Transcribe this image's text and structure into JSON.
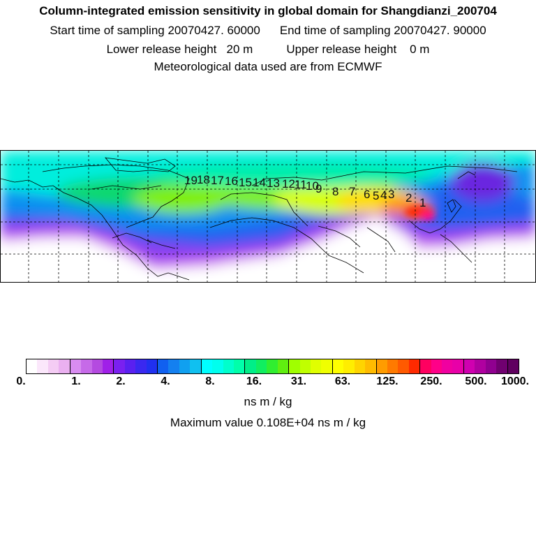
{
  "header": {
    "title": "Column-integrated emission sensitivity in global domain for Shangdianzi_200704",
    "start_label": "Start time of sampling 20070427. 60000",
    "end_label": "End time of sampling 20070427. 90000",
    "lower_label": "Lower release height   20 m",
    "upper_label": "Upper release height    0 m",
    "met_label": "Meteorological data used are from ECMWF"
  },
  "map": {
    "trajectory_labels": [
      "19",
      "18",
      "17",
      "16",
      "15",
      "14",
      "13",
      "12",
      "11",
      "10",
      "9",
      "8",
      "7",
      "6",
      "5",
      "4",
      "3",
      "2",
      "1"
    ]
  },
  "colorbar": {
    "tick_labels": [
      "0.",
      "1.",
      "2.",
      "4.",
      "8.",
      "16.",
      "31.",
      "63.",
      "125.",
      "250.",
      "500.",
      "1000."
    ],
    "colors": [
      "#ffffff",
      "#fbe7fb",
      "#f4ccf4",
      "#eab0f0",
      "#d88cf0",
      "#c66ae8",
      "#b44ae0",
      "#a020e8",
      "#7a20f0",
      "#5a20f0",
      "#3a28f0",
      "#2030f0",
      "#1060f0",
      "#1480f0",
      "#10a0f0",
      "#10c0f0",
      "#00ffff",
      "#00ffee",
      "#00ffcc",
      "#00ffaa",
      "#00ee88",
      "#10ee60",
      "#30ee30",
      "#60ee10",
      "#a0ff00",
      "#c0ff00",
      "#e0ff00",
      "#f0ff00",
      "#ffff00",
      "#ffee00",
      "#ffd400",
      "#ffbb00",
      "#ff9c00",
      "#ff7a00",
      "#ff5a00",
      "#ff2a00",
      "#ff0060",
      "#ff0088",
      "#f000a0",
      "#e800a8",
      "#d000b0",
      "#b000a0",
      "#900090",
      "#700070",
      "#600060"
    ],
    "unit": "ns m / kg",
    "max_text": "Maximum value  0.108E+04 ns m / kg"
  }
}
